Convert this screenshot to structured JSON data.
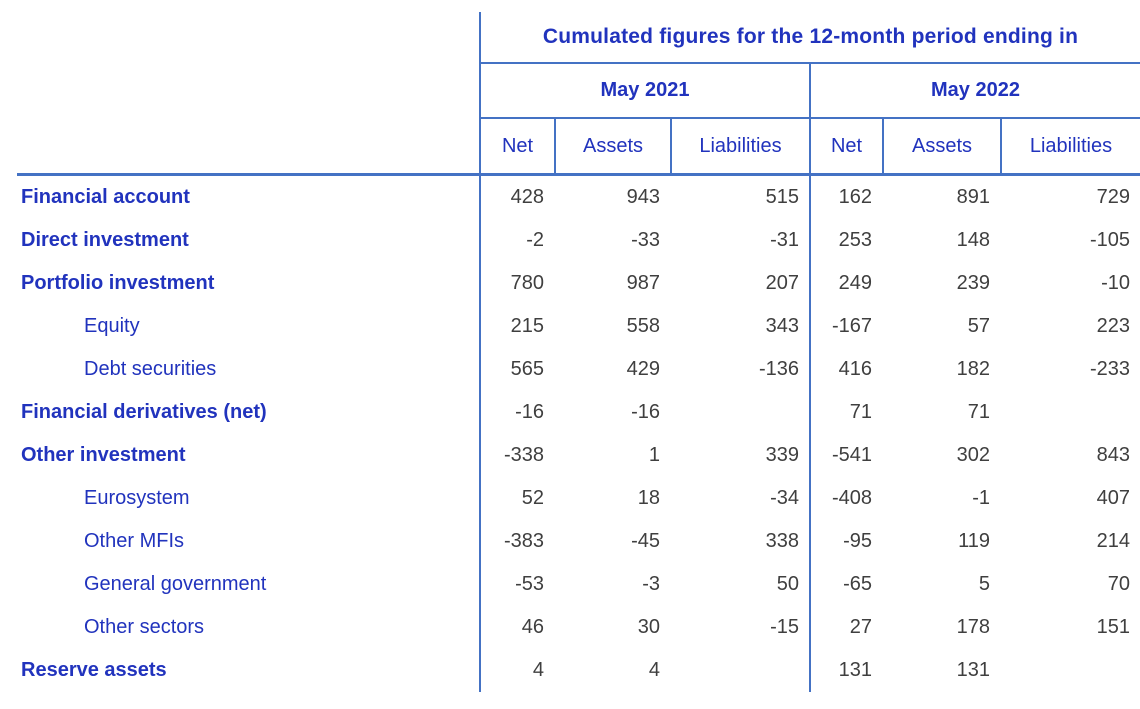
{
  "header": {
    "spanner": "Cumulated figures for the 12-month period ending in",
    "periods": [
      "May 2021",
      "May 2022"
    ],
    "measures": [
      "Net",
      "Assets",
      "Liabilities"
    ]
  },
  "rows": [
    {
      "label": "Financial account",
      "level": 1,
      "values": [
        "428",
        "943",
        "515",
        "162",
        "891",
        "729"
      ]
    },
    {
      "label": "Direct investment",
      "level": 1,
      "values": [
        "-2",
        "-33",
        "-31",
        "253",
        "148",
        "-105"
      ]
    },
    {
      "label": "Portfolio investment",
      "level": 1,
      "values": [
        "780",
        "987",
        "207",
        "249",
        "239",
        "-10"
      ]
    },
    {
      "label": "Equity",
      "level": 2,
      "values": [
        "215",
        "558",
        "343",
        "-167",
        "57",
        "223"
      ]
    },
    {
      "label": "Debt securities",
      "level": 2,
      "values": [
        "565",
        "429",
        "-136",
        "416",
        "182",
        "-233"
      ]
    },
    {
      "label": "Financial derivatives (net)",
      "level": 1,
      "values": [
        "-16",
        "-16",
        "",
        "71",
        "71",
        ""
      ]
    },
    {
      "label": "Other investment",
      "level": 1,
      "values": [
        "-338",
        "1",
        "339",
        "-541",
        "302",
        "843"
      ]
    },
    {
      "label": "Eurosystem",
      "level": 2,
      "values": [
        "52",
        "18",
        "-34",
        "-408",
        "-1",
        "407"
      ]
    },
    {
      "label": "Other MFIs",
      "level": 2,
      "values": [
        "-383",
        "-45",
        "338",
        "-95",
        "119",
        "214"
      ]
    },
    {
      "label": "General government",
      "level": 2,
      "values": [
        "-53",
        "-3",
        "50",
        "-65",
        "5",
        "70"
      ]
    },
    {
      "label": "Other sectors",
      "level": 2,
      "values": [
        "46",
        "30",
        "-15",
        "27",
        "178",
        "151"
      ]
    },
    {
      "label": "Reserve assets",
      "level": 1,
      "values": [
        "4",
        "4",
        "",
        "131",
        "131",
        ""
      ]
    }
  ],
  "colors": {
    "text_blue": "#2133bd",
    "number_text": "#3f3f3f",
    "border_blue": "#4472c4"
  }
}
